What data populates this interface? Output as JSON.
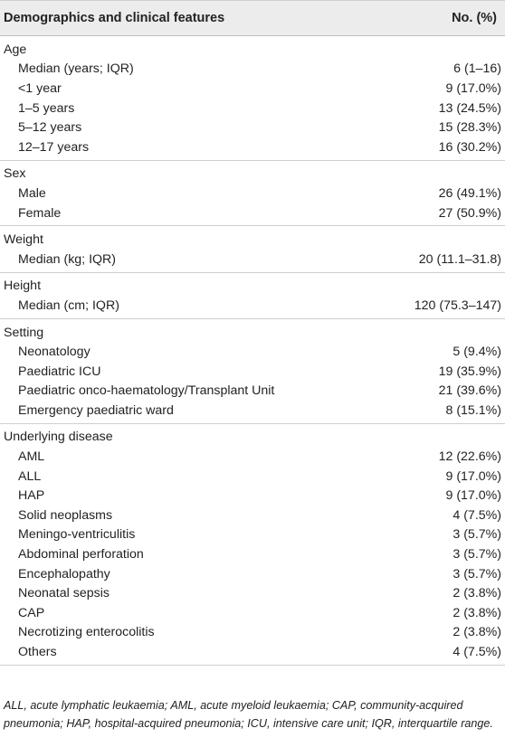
{
  "header": {
    "col1": "Demographics and clinical features",
    "col2": "No. (%)"
  },
  "groups": [
    {
      "title": "Age",
      "rows": [
        {
          "label": "Median (years; IQR)",
          "value": "6 (1–16)"
        },
        {
          "label": "<1 year",
          "value": "9 (17.0%)"
        },
        {
          "label": "1–5 years",
          "value": "13 (24.5%)"
        },
        {
          "label": "5–12 years",
          "value": "15 (28.3%)"
        },
        {
          "label": "12–17 years",
          "value": "16 (30.2%)"
        }
      ]
    },
    {
      "title": "Sex",
      "rows": [
        {
          "label": "Male",
          "value": "26 (49.1%)"
        },
        {
          "label": "Female",
          "value": "27 (50.9%)"
        }
      ]
    },
    {
      "title": "Weight",
      "rows": [
        {
          "label": "Median (kg; IQR)",
          "value": "20 (11.1–31.8)"
        }
      ]
    },
    {
      "title": "Height",
      "rows": [
        {
          "label": "Median (cm; IQR)",
          "value": "120 (75.3–147)"
        }
      ]
    },
    {
      "title": "Setting",
      "rows": [
        {
          "label": "Neonatology",
          "value": "5 (9.4%)"
        },
        {
          "label": "Paediatric ICU",
          "value": "19 (35.9%)"
        },
        {
          "label": "Paediatric onco-haematology/Transplant Unit",
          "value": "21 (39.6%)"
        },
        {
          "label": "Emergency paediatric ward",
          "value": "8 (15.1%)"
        }
      ]
    },
    {
      "title": "Underlying disease",
      "rows": [
        {
          "label": "AML",
          "value": "12 (22.6%)"
        },
        {
          "label": "ALL",
          "value": "9 (17.0%)"
        },
        {
          "label": "HAP",
          "value": "9 (17.0%)"
        },
        {
          "label": "Solid neoplasms",
          "value": "4 (7.5%)"
        },
        {
          "label": "Meningo-ventriculitis",
          "value": "3 (5.7%)"
        },
        {
          "label": "Abdominal perforation",
          "value": "3 (5.7%)"
        },
        {
          "label": "Encephalopathy",
          "value": "3 (5.7%)"
        },
        {
          "label": "Neonatal sepsis",
          "value": "2 (3.8%)"
        },
        {
          "label": "CAP",
          "value": "2 (3.8%)"
        },
        {
          "label": "Necrotizing enterocolitis",
          "value": "2 (3.8%)"
        },
        {
          "label": "Others",
          "value": "4 (7.5%)"
        }
      ]
    }
  ],
  "footnote": "ALL, acute lymphatic leukaemia; AML, acute myeloid leukaemia; CAP, community-acquired pneumonia; HAP, hospital-acquired pneumonia; ICU, intensive care unit; IQR, interquartile range."
}
